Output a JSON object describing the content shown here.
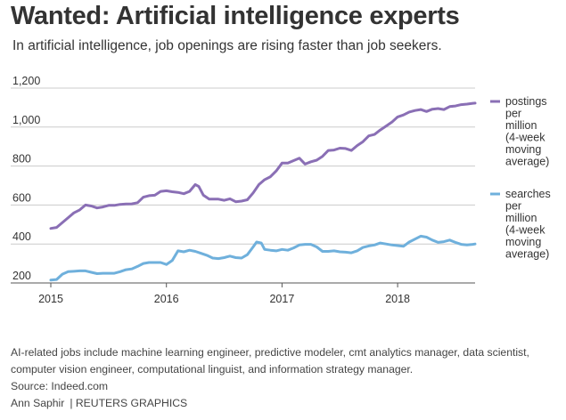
{
  "title": "Wanted: Artificial intelligence experts",
  "subtitle": "In artificial intelligence, job openings are rising faster than job seekers.",
  "footer": {
    "note_line1": "AI-related jobs include machine learning engineer, predictive modeler, cmt analytics manager, data scientist,",
    "note_line2": "computer vision engineer, computational linguist, and information strategy manager.",
    "source": "Source: Indeed.com",
    "author": "Ann Saphir",
    "credit": "| REUTERS GRAPHICS"
  },
  "colors": {
    "postings": "#8a6fb5",
    "searches": "#6fb0dc",
    "grid": "#cccccc",
    "axis": "#555555"
  },
  "chart_data": {
    "type": "line",
    "title": "Wanted: Artificial intelligence experts",
    "xlabel": "",
    "ylabel": "",
    "xlim": [
      2015.0,
      2018.67
    ],
    "ylim": [
      200,
      1200
    ],
    "x_ticks": [
      2015,
      2016,
      2017,
      2018
    ],
    "x_tick_labels": [
      "2015",
      "2016",
      "2017",
      "2018"
    ],
    "y_ticks": [
      200,
      400,
      600,
      800,
      1000,
      1200
    ],
    "y_tick_labels": [
      "200",
      "400",
      "600",
      "800",
      "1,000",
      "1,200"
    ],
    "grid": true,
    "legend_position": "right",
    "series": [
      {
        "name": "postings per million (4-week moving average)",
        "label_lines": [
          "postings",
          "per",
          "million",
          "(4-week",
          "moving",
          "average)"
        ],
        "color": "#8a6fb5",
        "points": [
          [
            2015.0,
            480
          ],
          [
            2015.05,
            485
          ],
          [
            2015.1,
            510
          ],
          [
            2015.15,
            535
          ],
          [
            2015.2,
            560
          ],
          [
            2015.25,
            575
          ],
          [
            2015.3,
            600
          ],
          [
            2015.35,
            595
          ],
          [
            2015.4,
            585
          ],
          [
            2015.45,
            590
          ],
          [
            2015.5,
            598
          ],
          [
            2015.55,
            598
          ],
          [
            2015.6,
            603
          ],
          [
            2015.65,
            605
          ],
          [
            2015.7,
            606
          ],
          [
            2015.75,
            612
          ],
          [
            2015.8,
            640
          ],
          [
            2015.85,
            648
          ],
          [
            2015.9,
            650
          ],
          [
            2015.95,
            670
          ],
          [
            2016.0,
            673
          ],
          [
            2016.05,
            668
          ],
          [
            2016.1,
            665
          ],
          [
            2016.15,
            658
          ],
          [
            2016.2,
            670
          ],
          [
            2016.25,
            705
          ],
          [
            2016.28,
            695
          ],
          [
            2016.32,
            650
          ],
          [
            2016.37,
            630
          ],
          [
            2016.45,
            630
          ],
          [
            2016.5,
            624
          ],
          [
            2016.55,
            632
          ],
          [
            2016.6,
            617
          ],
          [
            2016.65,
            620
          ],
          [
            2016.7,
            627
          ],
          [
            2016.75,
            662
          ],
          [
            2016.8,
            705
          ],
          [
            2016.85,
            730
          ],
          [
            2016.9,
            745
          ],
          [
            2016.95,
            775
          ],
          [
            2017.0,
            815
          ],
          [
            2017.05,
            815
          ],
          [
            2017.1,
            828
          ],
          [
            2017.15,
            840
          ],
          [
            2017.2,
            810
          ],
          [
            2017.25,
            822
          ],
          [
            2017.3,
            830
          ],
          [
            2017.35,
            850
          ],
          [
            2017.4,
            880
          ],
          [
            2017.45,
            882
          ],
          [
            2017.5,
            892
          ],
          [
            2017.55,
            890
          ],
          [
            2017.6,
            880
          ],
          [
            2017.65,
            905
          ],
          [
            2017.7,
            925
          ],
          [
            2017.75,
            955
          ],
          [
            2017.8,
            962
          ],
          [
            2017.85,
            985
          ],
          [
            2017.9,
            1005
          ],
          [
            2017.95,
            1025
          ],
          [
            2018.0,
            1052
          ],
          [
            2018.05,
            1062
          ],
          [
            2018.1,
            1077
          ],
          [
            2018.15,
            1085
          ],
          [
            2018.2,
            1090
          ],
          [
            2018.25,
            1080
          ],
          [
            2018.3,
            1092
          ],
          [
            2018.35,
            1095
          ],
          [
            2018.4,
            1090
          ],
          [
            2018.45,
            1105
          ],
          [
            2018.5,
            1108
          ],
          [
            2018.55,
            1115
          ],
          [
            2018.6,
            1118
          ],
          [
            2018.65,
            1122
          ],
          [
            2018.67,
            1123
          ]
        ]
      },
      {
        "name": "searches per million (4-week moving average)",
        "label_lines": [
          "searches",
          "per",
          "million",
          "(4-week",
          "moving",
          "average)"
        ],
        "color": "#6fb0dc",
        "points": [
          [
            2015.0,
            215
          ],
          [
            2015.05,
            218
          ],
          [
            2015.1,
            245
          ],
          [
            2015.15,
            258
          ],
          [
            2015.2,
            260
          ],
          [
            2015.25,
            262
          ],
          [
            2015.3,
            262
          ],
          [
            2015.35,
            255
          ],
          [
            2015.4,
            248
          ],
          [
            2015.45,
            250
          ],
          [
            2015.5,
            250
          ],
          [
            2015.55,
            250
          ],
          [
            2015.6,
            258
          ],
          [
            2015.65,
            268
          ],
          [
            2015.7,
            272
          ],
          [
            2015.75,
            285
          ],
          [
            2015.8,
            300
          ],
          [
            2015.85,
            305
          ],
          [
            2015.9,
            305
          ],
          [
            2015.95,
            305
          ],
          [
            2016.0,
            295
          ],
          [
            2016.05,
            315
          ],
          [
            2016.1,
            365
          ],
          [
            2016.15,
            360
          ],
          [
            2016.2,
            368
          ],
          [
            2016.25,
            362
          ],
          [
            2016.3,
            352
          ],
          [
            2016.35,
            342
          ],
          [
            2016.4,
            328
          ],
          [
            2016.45,
            325
          ],
          [
            2016.5,
            330
          ],
          [
            2016.55,
            338
          ],
          [
            2016.6,
            330
          ],
          [
            2016.65,
            328
          ],
          [
            2016.7,
            345
          ],
          [
            2016.75,
            385
          ],
          [
            2016.78,
            410
          ],
          [
            2016.82,
            405
          ],
          [
            2016.85,
            372
          ],
          [
            2016.9,
            368
          ],
          [
            2016.95,
            365
          ],
          [
            2017.0,
            372
          ],
          [
            2017.05,
            368
          ],
          [
            2017.1,
            380
          ],
          [
            2017.15,
            395
          ],
          [
            2017.2,
            398
          ],
          [
            2017.25,
            398
          ],
          [
            2017.3,
            385
          ],
          [
            2017.35,
            362
          ],
          [
            2017.4,
            362
          ],
          [
            2017.45,
            365
          ],
          [
            2017.5,
            360
          ],
          [
            2017.55,
            358
          ],
          [
            2017.6,
            355
          ],
          [
            2017.65,
            365
          ],
          [
            2017.7,
            382
          ],
          [
            2017.75,
            390
          ],
          [
            2017.8,
            395
          ],
          [
            2017.85,
            405
          ],
          [
            2017.9,
            400
          ],
          [
            2017.95,
            395
          ],
          [
            2018.0,
            392
          ],
          [
            2018.05,
            388
          ],
          [
            2018.1,
            410
          ],
          [
            2018.15,
            425
          ],
          [
            2018.2,
            440
          ],
          [
            2018.25,
            435
          ],
          [
            2018.3,
            420
          ],
          [
            2018.35,
            408
          ],
          [
            2018.4,
            412
          ],
          [
            2018.45,
            420
          ],
          [
            2018.5,
            408
          ],
          [
            2018.55,
            398
          ],
          [
            2018.6,
            395
          ],
          [
            2018.65,
            398
          ],
          [
            2018.67,
            400
          ]
        ]
      }
    ]
  }
}
